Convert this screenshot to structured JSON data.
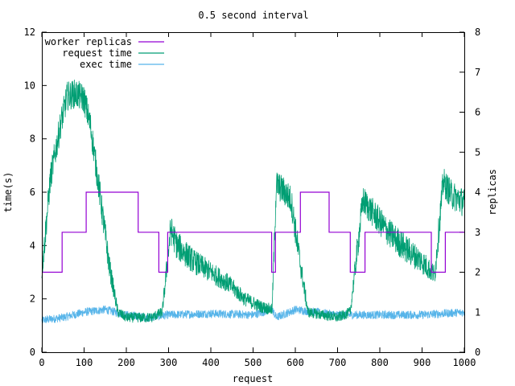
{
  "chart_data": {
    "type": "line",
    "title": "0.5 second interval",
    "xlabel": "request",
    "ylabel_left": "time(s)",
    "ylabel_right": "replicas",
    "xlim": [
      0,
      1000
    ],
    "ylim_left": [
      0,
      12
    ],
    "ylim_right": [
      0,
      8
    ],
    "x_ticks": [
      0,
      100,
      200,
      300,
      400,
      500,
      600,
      700,
      800,
      900,
      1000
    ],
    "y_ticks_left": [
      0,
      2,
      4,
      6,
      8,
      10,
      12
    ],
    "y_ticks_right": [
      0,
      1,
      2,
      3,
      4,
      5,
      6,
      7,
      8
    ],
    "grid": false,
    "legend_position": "top-left",
    "series": [
      {
        "name": "worker replicas",
        "axis": "right",
        "color": "#9400d3",
        "step": true,
        "points": [
          [
            0,
            2
          ],
          [
            48,
            2
          ],
          [
            48,
            3
          ],
          [
            105,
            3
          ],
          [
            105,
            4
          ],
          [
            228,
            4
          ],
          [
            228,
            3
          ],
          [
            277,
            3
          ],
          [
            277,
            2
          ],
          [
            298,
            2
          ],
          [
            298,
            3
          ],
          [
            544,
            3
          ],
          [
            544,
            2
          ],
          [
            553,
            2
          ],
          [
            553,
            3
          ],
          [
            612,
            3
          ],
          [
            612,
            4
          ],
          [
            680,
            4
          ],
          [
            680,
            3
          ],
          [
            730,
            3
          ],
          [
            730,
            2
          ],
          [
            765,
            2
          ],
          [
            765,
            3
          ],
          [
            922,
            3
          ],
          [
            922,
            2
          ],
          [
            955,
            2
          ],
          [
            955,
            3
          ],
          [
            1000,
            3
          ]
        ]
      },
      {
        "name": "request time",
        "axis": "left",
        "color": "#009e73",
        "points": [
          [
            0,
            3.0
          ],
          [
            20,
            6.5
          ],
          [
            45,
            8.6
          ],
          [
            60,
            9.6
          ],
          [
            80,
            9.7
          ],
          [
            100,
            9.5
          ],
          [
            115,
            8.5
          ],
          [
            135,
            6.2
          ],
          [
            160,
            3.2
          ],
          [
            180,
            1.5
          ],
          [
            200,
            1.3
          ],
          [
            260,
            1.3
          ],
          [
            285,
            1.5
          ],
          [
            305,
            4.6
          ],
          [
            320,
            4.0
          ],
          [
            360,
            3.4
          ],
          [
            400,
            3.0
          ],
          [
            440,
            2.6
          ],
          [
            480,
            2.0
          ],
          [
            520,
            1.7
          ],
          [
            545,
            1.6
          ],
          [
            555,
            6.3
          ],
          [
            575,
            6.0
          ],
          [
            590,
            5.7
          ],
          [
            610,
            3.5
          ],
          [
            630,
            1.5
          ],
          [
            700,
            1.3
          ],
          [
            730,
            1.5
          ],
          [
            760,
            5.7
          ],
          [
            780,
            5.3
          ],
          [
            820,
            4.5
          ],
          [
            860,
            3.9
          ],
          [
            900,
            3.4
          ],
          [
            930,
            2.9
          ],
          [
            950,
            6.4
          ],
          [
            970,
            5.9
          ],
          [
            1000,
            5.6
          ]
        ]
      },
      {
        "name": "exec time",
        "axis": "left",
        "color": "#56b4e9",
        "points": [
          [
            0,
            1.2
          ],
          [
            50,
            1.3
          ],
          [
            100,
            1.5
          ],
          [
            150,
            1.6
          ],
          [
            200,
            1.4
          ],
          [
            250,
            1.3
          ],
          [
            300,
            1.4
          ],
          [
            400,
            1.45
          ],
          [
            500,
            1.4
          ],
          [
            545,
            1.6
          ],
          [
            555,
            1.3
          ],
          [
            600,
            1.6
          ],
          [
            700,
            1.4
          ],
          [
            800,
            1.4
          ],
          [
            900,
            1.4
          ],
          [
            1000,
            1.5
          ]
        ]
      }
    ]
  }
}
